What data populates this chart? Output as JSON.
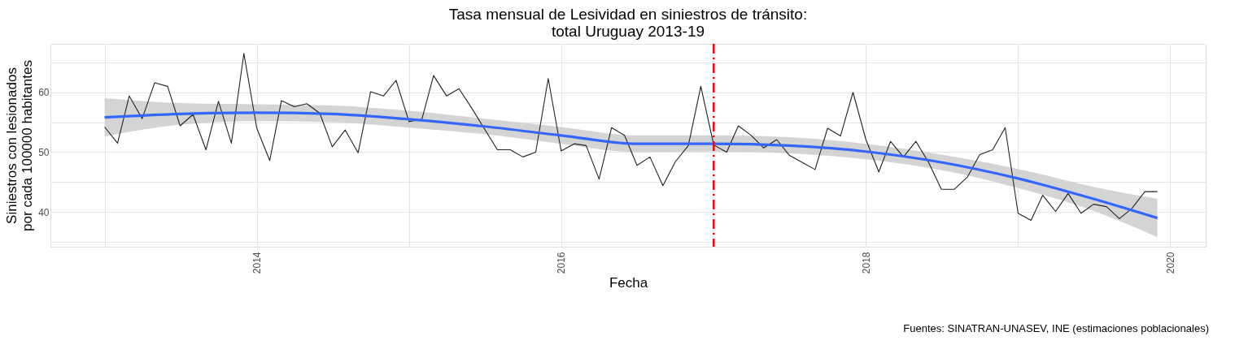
{
  "chart_data": {
    "type": "line",
    "title": "Tasa mensual de Lesividad en siniestros de tránsito:\ntotal Uruguay 2013-19",
    "xlabel": "Fecha",
    "ylabel": "Siniestros con lesionados\npor cada 100000 habitantes",
    "annotations": [
      "Fuentes: SINATRAN-UNASEV, INE (estimaciones poblacionales)"
    ],
    "x": [
      "2013-01",
      "2013-02",
      "2013-03",
      "2013-04",
      "2013-05",
      "2013-06",
      "2013-07",
      "2013-08",
      "2013-09",
      "2013-10",
      "2013-11",
      "2013-12",
      "2014-01",
      "2014-02",
      "2014-03",
      "2014-04",
      "2014-05",
      "2014-06",
      "2014-07",
      "2014-08",
      "2014-09",
      "2014-10",
      "2014-11",
      "2014-12",
      "2015-01",
      "2015-02",
      "2015-03",
      "2015-04",
      "2015-05",
      "2015-06",
      "2015-07",
      "2015-08",
      "2015-09",
      "2015-10",
      "2015-11",
      "2015-12",
      "2016-01",
      "2016-02",
      "2016-03",
      "2016-04",
      "2016-05",
      "2016-06",
      "2016-07",
      "2016-08",
      "2016-09",
      "2016-10",
      "2016-11",
      "2016-12",
      "2017-01",
      "2017-02",
      "2017-03",
      "2017-04",
      "2017-05",
      "2017-06",
      "2017-07",
      "2017-08",
      "2017-09",
      "2017-10",
      "2017-11",
      "2017-12",
      "2018-01",
      "2018-02",
      "2018-03",
      "2018-04",
      "2018-05",
      "2018-06",
      "2018-07",
      "2018-08",
      "2018-09",
      "2018-10",
      "2018-11",
      "2018-12",
      "2019-01",
      "2019-02",
      "2019-03",
      "2019-04",
      "2019-05",
      "2019-06",
      "2019-07",
      "2019-08",
      "2019-09",
      "2019-10",
      "2019-11",
      "2019-12"
    ],
    "series": [
      {
        "color": "#222222",
        "values": [
          54.2,
          51.5,
          59.4,
          55.6,
          61.6,
          61.0,
          54.4,
          56.3,
          50.4,
          58.5,
          51.5,
          66.5,
          54.0,
          48.6,
          58.6,
          57.6,
          58.1,
          56.5,
          50.9,
          53.7,
          49.9,
          60.1,
          59.4,
          62.0,
          55.1,
          55.5,
          62.8,
          59.4,
          60.6,
          57.3,
          53.9,
          50.4,
          50.4,
          49.2,
          50.0,
          62.3,
          50.2,
          51.4,
          51.1,
          45.5,
          54.1,
          52.8,
          47.8,
          49.2,
          44.4,
          48.4,
          51.1,
          61.0,
          51.2,
          50.0,
          54.4,
          52.8,
          50.7,
          52.1,
          49.5,
          48.3,
          47.1,
          54.0,
          52.7,
          60.0,
          52.1,
          46.7,
          51.8,
          49.2,
          51.8,
          48.2,
          43.8,
          43.8,
          45.8,
          49.6,
          50.4,
          54.1,
          39.8,
          38.6,
          42.8,
          40.1,
          43.1,
          39.8,
          41.3,
          40.9,
          38.9,
          40.6,
          43.4,
          43.4
        ]
      },
      {
        "type": "line",
        "color": "#3366ff",
        "x": [
          "2013-01",
          "2013-07",
          "2014-01",
          "2014-07",
          "2015-01",
          "2015-07",
          "2016-01",
          "2016-07",
          "2017-01",
          "2017-07",
          "2018-01",
          "2018-07",
          "2019-01",
          "2019-07",
          "2019-12"
        ],
        "values": [
          55.8,
          56.4,
          56.6,
          56.4,
          55.5,
          54.3,
          52.8,
          51.4,
          51.4,
          51.1,
          50.1,
          48.3,
          45.6,
          42.2,
          39.0
        ],
        "lower": [
          52.6,
          54.6,
          55.2,
          55.0,
          54.1,
          53.0,
          51.4,
          50.0,
          50.1,
          49.8,
          48.8,
          47.0,
          44.0,
          40.2,
          35.8
        ],
        "upper": [
          59.0,
          58.2,
          58.0,
          57.8,
          56.9,
          55.6,
          54.2,
          52.8,
          52.8,
          52.5,
          51.4,
          49.6,
          47.2,
          44.2,
          42.2
        ]
      }
    ],
    "ref_lines": [
      {
        "axis": "x",
        "value": "2017-01",
        "color": "#ff0000",
        "line_style": "dashed"
      }
    ],
    "xlim": [
      "2012-08-24",
      "2020-03-26"
    ],
    "xticks": [
      {
        "value": "2013",
        "label": null
      },
      "2014",
      {
        "value": "2015",
        "label": null
      },
      "2016",
      {
        "value": "2017",
        "label": null
      },
      "2018",
      {
        "value": "2019",
        "label": null
      },
      "2020"
    ],
    "ylim": [
      34.2,
      68.1
    ],
    "yticks": [
      {
        "value": 35,
        "label": null
      },
      40,
      {
        "value": 45,
        "label": null
      },
      50,
      {
        "value": 55,
        "label": null
      },
      60,
      {
        "value": 65,
        "label": null
      }
    ],
    "grid": true,
    "line_style": "solid"
  }
}
